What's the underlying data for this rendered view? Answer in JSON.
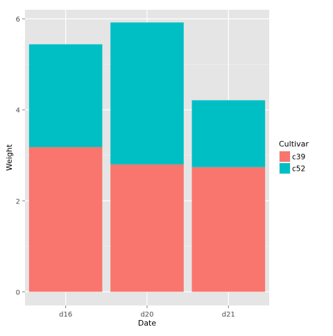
{
  "colors": {
    "panel_background": "#e5e5e5",
    "grid_major": "#ffffff",
    "grid_minor": "#f2f2f2",
    "c39": "#f8766d",
    "c52": "#00bfc4",
    "tick_text": "#4d4d4d",
    "axis_title_text": "#000000"
  },
  "chart_data": {
    "type": "bar",
    "stacked": true,
    "xlabel": "Date",
    "ylabel": "Weight",
    "categories": [
      "d16",
      "d20",
      "d21"
    ],
    "series": [
      {
        "name": "c39",
        "values": [
          3.18,
          2.8,
          2.74
        ]
      },
      {
        "name": "c52",
        "values": [
          2.26,
          3.12,
          1.47
        ]
      }
    ],
    "ylim": [
      -0.3,
      6.2
    ],
    "yticks": [
      0,
      2,
      4,
      6
    ],
    "grid": true,
    "legend": {
      "title": "Cultivar",
      "position": "right",
      "entries": [
        "c39",
        "c52"
      ]
    }
  }
}
